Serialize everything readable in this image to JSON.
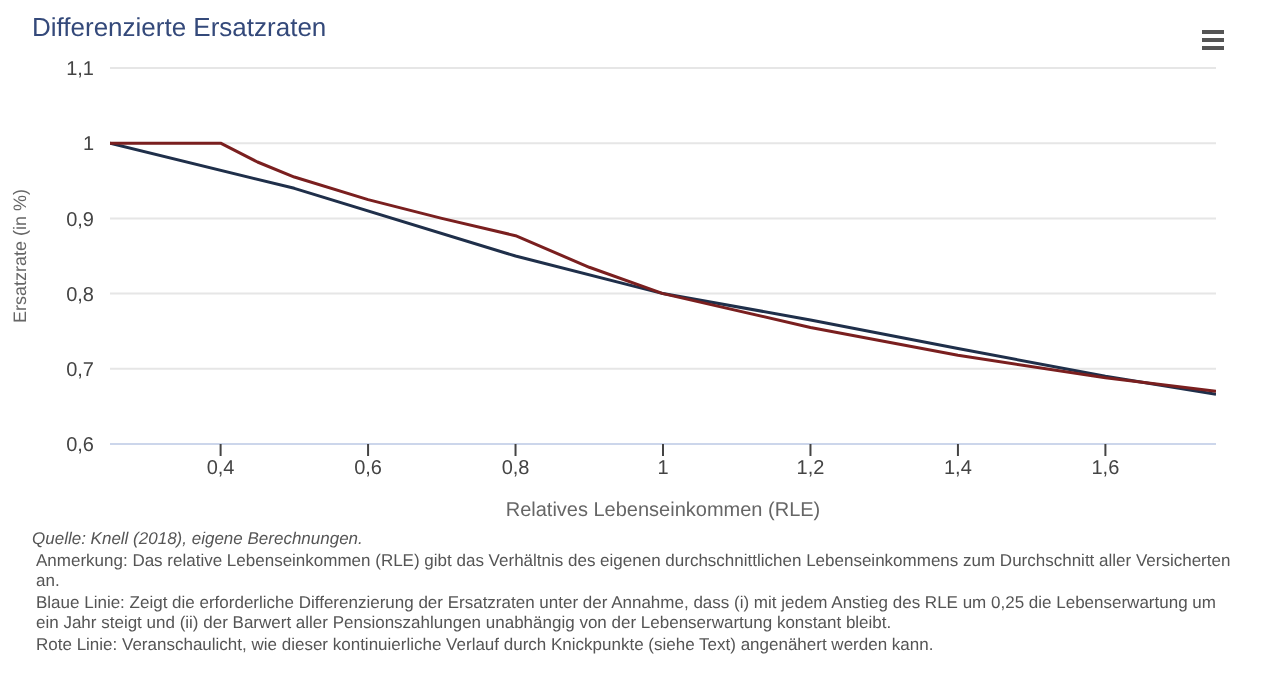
{
  "chart_data": {
    "type": "line",
    "title": "Differenzierte Ersatzraten",
    "xlabel": "Relatives Lebenseinkommen (RLE)",
    "ylabel": "Ersatzrate (in %)",
    "xlim": [
      0.25,
      1.75
    ],
    "xticks": [
      {
        "value": 0.4,
        "label": "0,4"
      },
      {
        "value": 0.6,
        "label": "0,6"
      },
      {
        "value": 0.8,
        "label": "0,8"
      },
      1,
      {
        "value": 1.2,
        "label": "1,2"
      },
      {
        "value": 1.4,
        "label": "1,4"
      },
      {
        "value": 1.6,
        "label": "1,6"
      }
    ],
    "ylim": [
      0.6,
      1.1
    ],
    "yticks": [
      {
        "value": 0.6,
        "label": "0,6"
      },
      {
        "value": 0.7,
        "label": "0,7"
      },
      {
        "value": 0.8,
        "label": "0,8"
      },
      {
        "value": 0.9,
        "label": "0,9"
      },
      1,
      {
        "value": 1.1,
        "label": "1,1"
      }
    ],
    "grid": "y",
    "legend": false,
    "marker": "none",
    "line_style": "solid",
    "series": [
      {
        "color": "#1f2f4a",
        "x": [
          0.25,
          0.5,
          0.8,
          1.0,
          1.2,
          1.4,
          1.6,
          1.75
        ],
        "values": [
          1.0,
          0.94,
          0.85,
          0.8,
          0.765,
          0.727,
          0.69,
          0.666
        ]
      },
      {
        "color": "#7a1f1f",
        "x": [
          0.25,
          0.4,
          0.45,
          0.5,
          0.6,
          0.7,
          0.8,
          0.9,
          1.0,
          1.2,
          1.4,
          1.6,
          1.75
        ],
        "values": [
          1.0,
          1.0,
          0.975,
          0.955,
          0.925,
          0.9,
          0.877,
          0.835,
          0.8,
          0.755,
          0.718,
          0.688,
          0.67
        ]
      }
    ],
    "annotations": [
      "Quelle: Knell (2018), eigene Berechnungen.",
      "Anmerkung: Das relative Lebenseinkommen (RLE) gibt das Verhältnis des eigenen durchschnittlichen Lebenseinkommens zum Durchschnitt aller Versicherten an.",
      "Blaue Linie: Zeigt die erforderliche Differenzierung der Ersatzraten unter der Annahme, dass (i) mit jedem Anstieg des RLE um 0,25 die Lebenserwartung um ein Jahr steigt und (ii) der Barwert aller Pensionszahlungen unabhängig von der Lebenserwartung konstant bleibt.",
      "Rote Linie: Veranschaulicht, wie dieser kontinuierliche Verlauf durch Knickpunkte (siehe Text) angenähert werden kann."
    ]
  }
}
